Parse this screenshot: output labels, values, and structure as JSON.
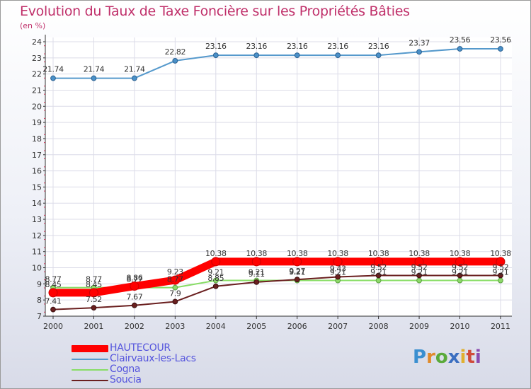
{
  "header": {
    "title": "Evolution du Taux de Taxe Foncière sur les Propriétés Bâties",
    "unit": "(en %)"
  },
  "logo": {
    "parts": [
      "P",
      "r",
      "o",
      "x",
      "i",
      "t",
      "i"
    ],
    "text": "Proxiti"
  },
  "chart_data": {
    "type": "line",
    "title": "Evolution du Taux de Taxe Foncière sur les Propriétés Bâties",
    "ylabel": "(en %)",
    "xlabel": "",
    "categories": [
      "2000",
      "2001",
      "2002",
      "2003",
      "2004",
      "2005",
      "2006",
      "2007",
      "2008",
      "2009",
      "2010",
      "2011"
    ],
    "ylim": [
      7,
      24
    ],
    "yticks": [
      "7",
      "8",
      "9",
      "10",
      "11",
      "12",
      "13",
      "14",
      "15",
      "16",
      "17",
      "18",
      "19",
      "20",
      "21",
      "22",
      "23",
      "24"
    ],
    "legend_position": "bottom-left",
    "series": [
      {
        "name": "HAUTECOUR",
        "color": "#ff0000",
        "values": [
          8.45,
          8.45,
          8.86,
          9.23,
          10.38,
          10.38,
          10.38,
          10.38,
          10.38,
          10.38,
          10.38,
          10.38
        ],
        "labels": [
          "8.45",
          "8.45",
          "8.86",
          "9.23",
          "10.38",
          "10.38",
          "10.38",
          "10.38",
          "10.38",
          "10.38",
          "10.38",
          "10.38"
        ]
      },
      {
        "name": "Clairvaux-les-Lacs",
        "color": "#5599cc",
        "values": [
          21.74,
          21.74,
          21.74,
          22.82,
          23.16,
          23.16,
          23.16,
          23.16,
          23.16,
          23.37,
          23.56,
          23.56
        ],
        "labels": [
          "21.74",
          "21.74",
          "21.74",
          "22.82",
          "23.16",
          "23.16",
          "23.16",
          "23.16",
          "23.16",
          "23.37",
          "23.56",
          "23.56"
        ]
      },
      {
        "name": "Cogna",
        "color": "#88dd66",
        "values": [
          8.77,
          8.77,
          8.77,
          8.77,
          9.21,
          9.21,
          9.21,
          9.21,
          9.21,
          9.21,
          9.21,
          9.21
        ],
        "labels": [
          "8.77",
          "8.77",
          "8.77",
          "8.77",
          "9.21",
          "9.21",
          "9.21",
          "9.21",
          "9.21",
          "9.21",
          "9.21",
          "9.21"
        ]
      },
      {
        "name": "Soucia",
        "color": "#6a1f1f",
        "values": [
          7.41,
          7.52,
          7.67,
          7.9,
          8.85,
          9.11,
          9.27,
          9.43,
          9.52,
          9.52,
          9.52,
          9.52
        ],
        "labels": [
          "7.41",
          "7.52",
          "7.67",
          "7.9",
          "8.85",
          "9.11",
          "9.27",
          "9.43",
          "9.52",
          "9.52",
          "9.52",
          "9.52"
        ]
      }
    ]
  }
}
